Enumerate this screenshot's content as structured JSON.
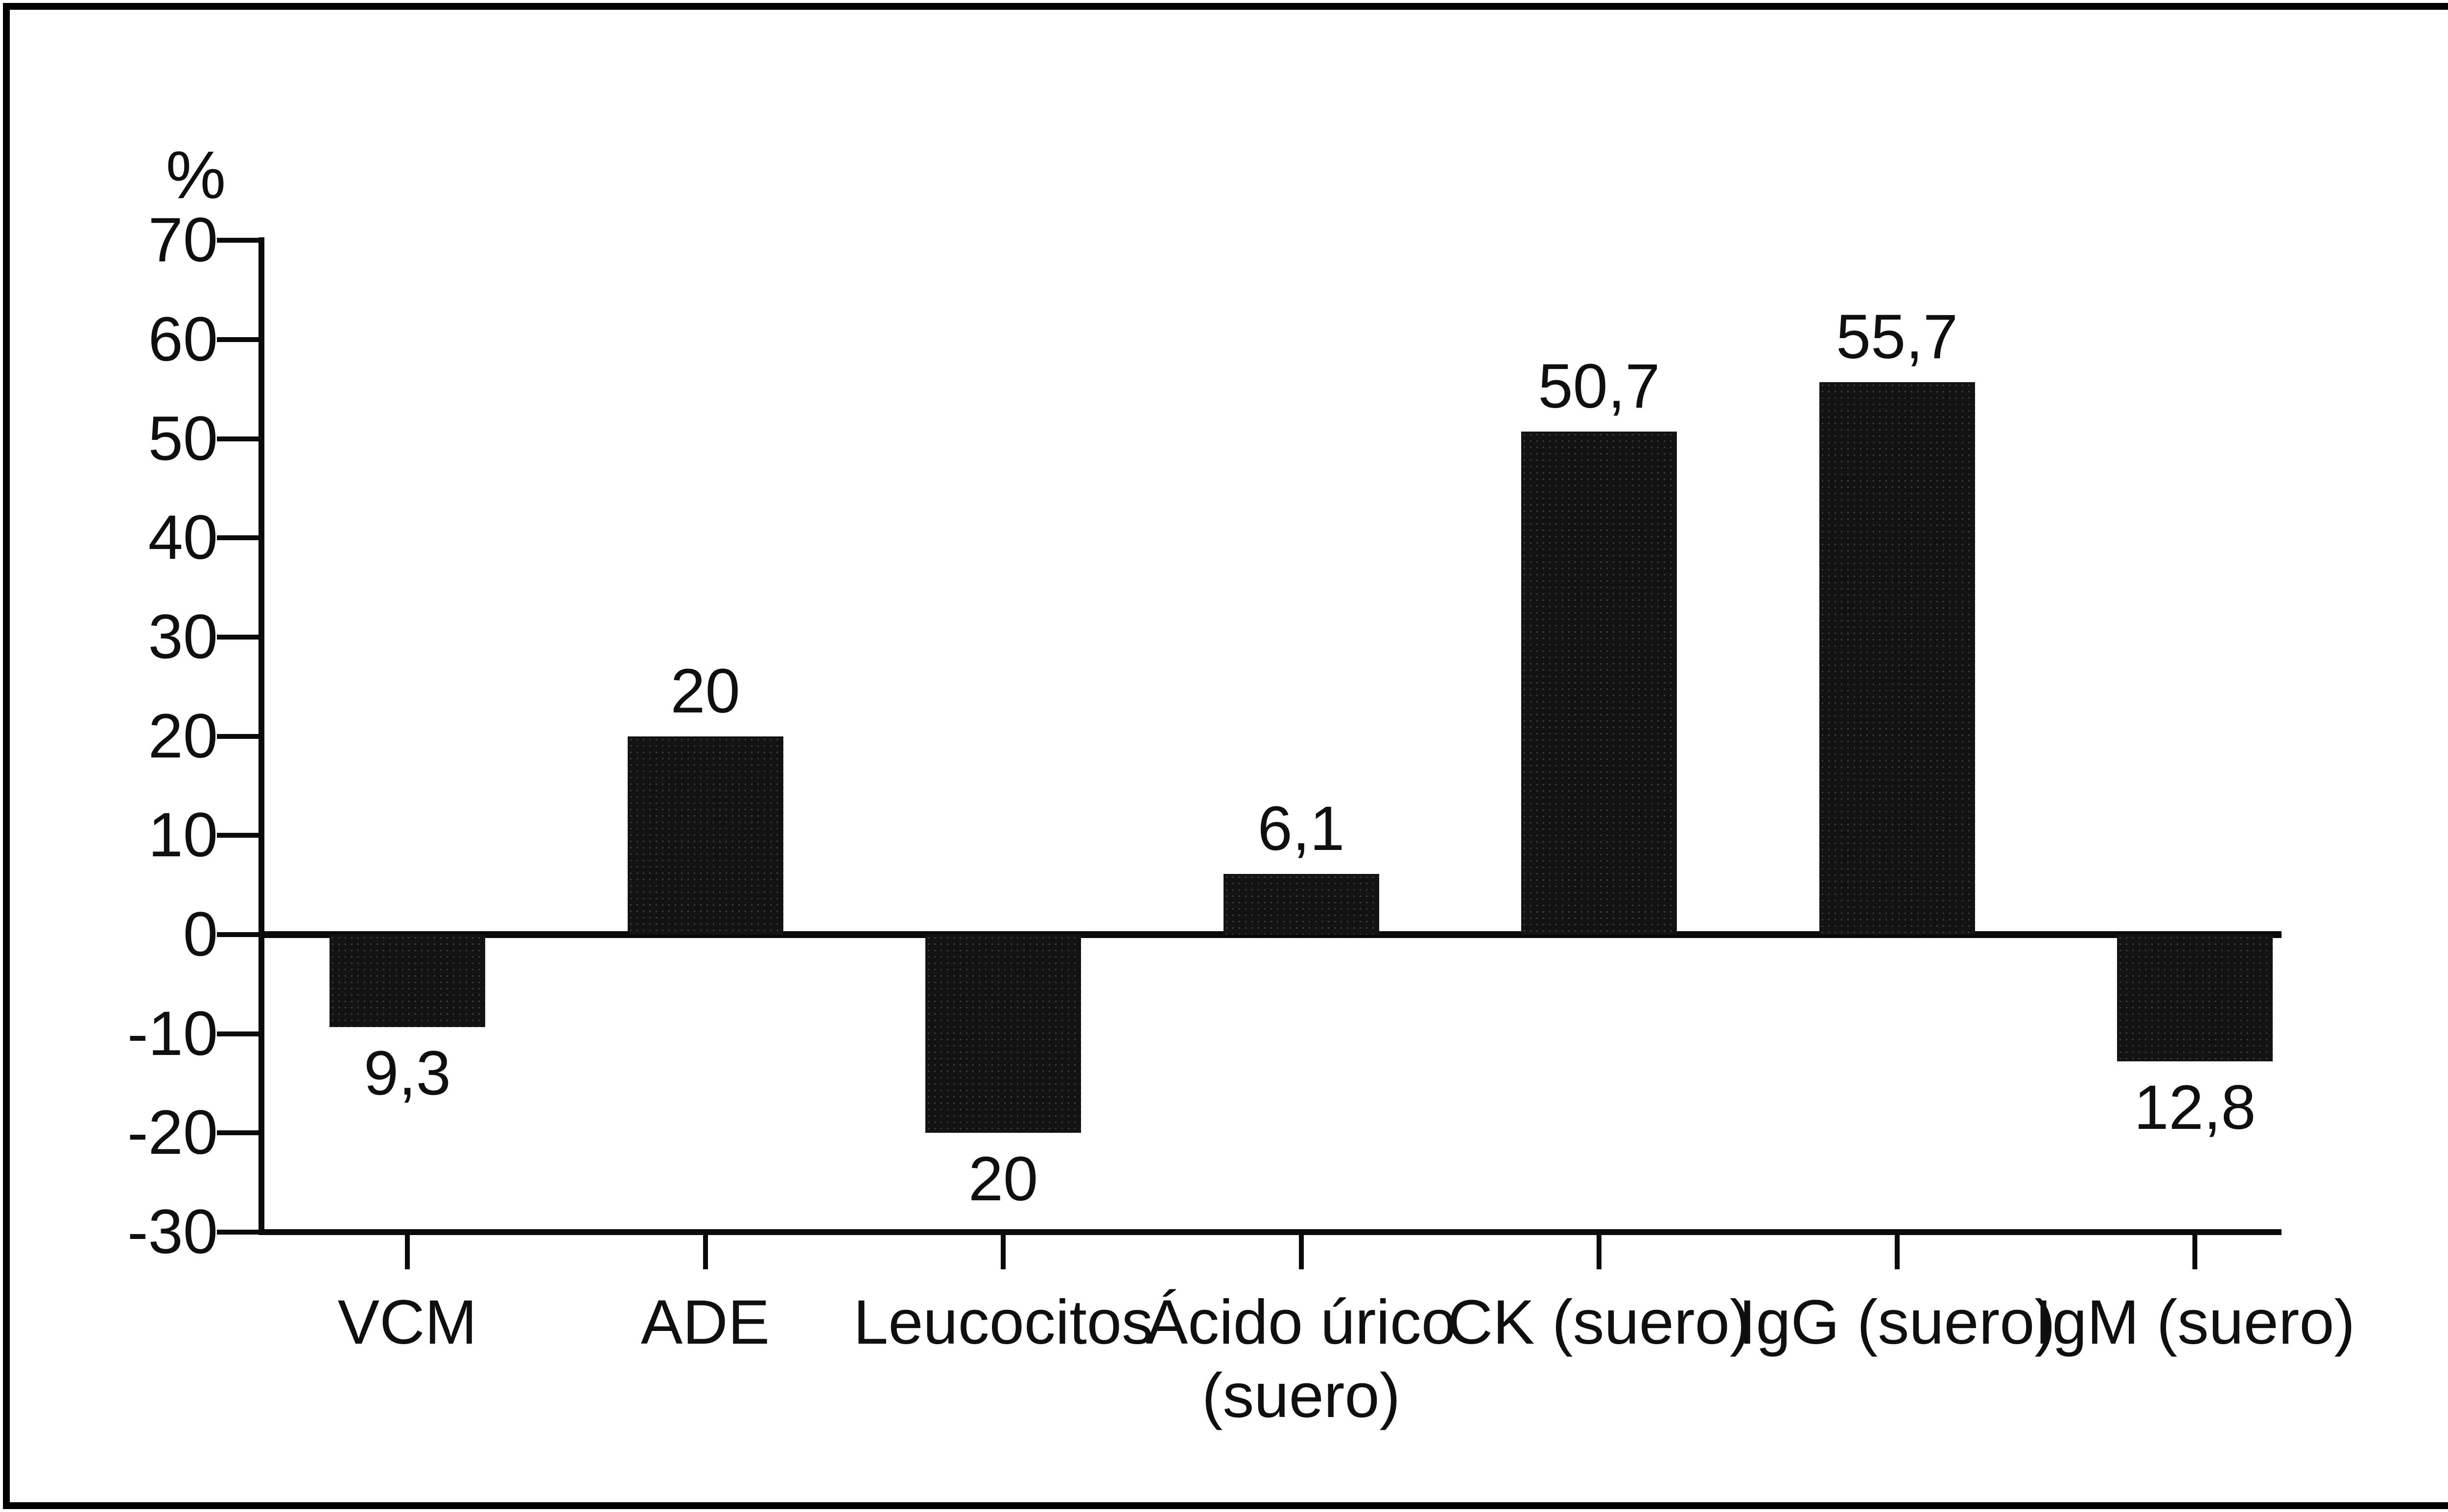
{
  "figure": {
    "background_color": "#ffffff",
    "ink_color": "#0f0f0f",
    "frame": "black rectangular border"
  },
  "chart_data": {
    "type": "bar",
    "title": "",
    "ylabel": "%",
    "xlabel": "",
    "categories": [
      "VCM",
      "ADE",
      "Leucocitos",
      "Ácido úrico (suero)",
      "CK (suero)",
      "IgG (suero)",
      "IgM (suero)"
    ],
    "category_display_lines": [
      [
        "VCM"
      ],
      [
        "ADE"
      ],
      [
        "Leucocitos"
      ],
      [
        "Ácido úrico",
        "(suero)"
      ],
      [
        "CK (suero)"
      ],
      [
        "IgG (suero)"
      ],
      [
        "IgM (suero)"
      ]
    ],
    "values": [
      -9.3,
      20,
      -20,
      6.1,
      50.7,
      55.7,
      -12.8
    ],
    "bar_value_labels": [
      "9,3",
      "20",
      "20",
      "6,1",
      "50,7",
      "55,7",
      "12,8"
    ],
    "yticks": [
      70,
      60,
      50,
      40,
      30,
      20,
      10,
      0,
      -10,
      -20,
      -30
    ],
    "ylim": [
      -30,
      70
    ],
    "bar_color": "#131313",
    "grid": false,
    "legend_position": "none",
    "notes": "negative bars hang below the zero baseline; value labels shown above positive bars and below negative bars"
  }
}
